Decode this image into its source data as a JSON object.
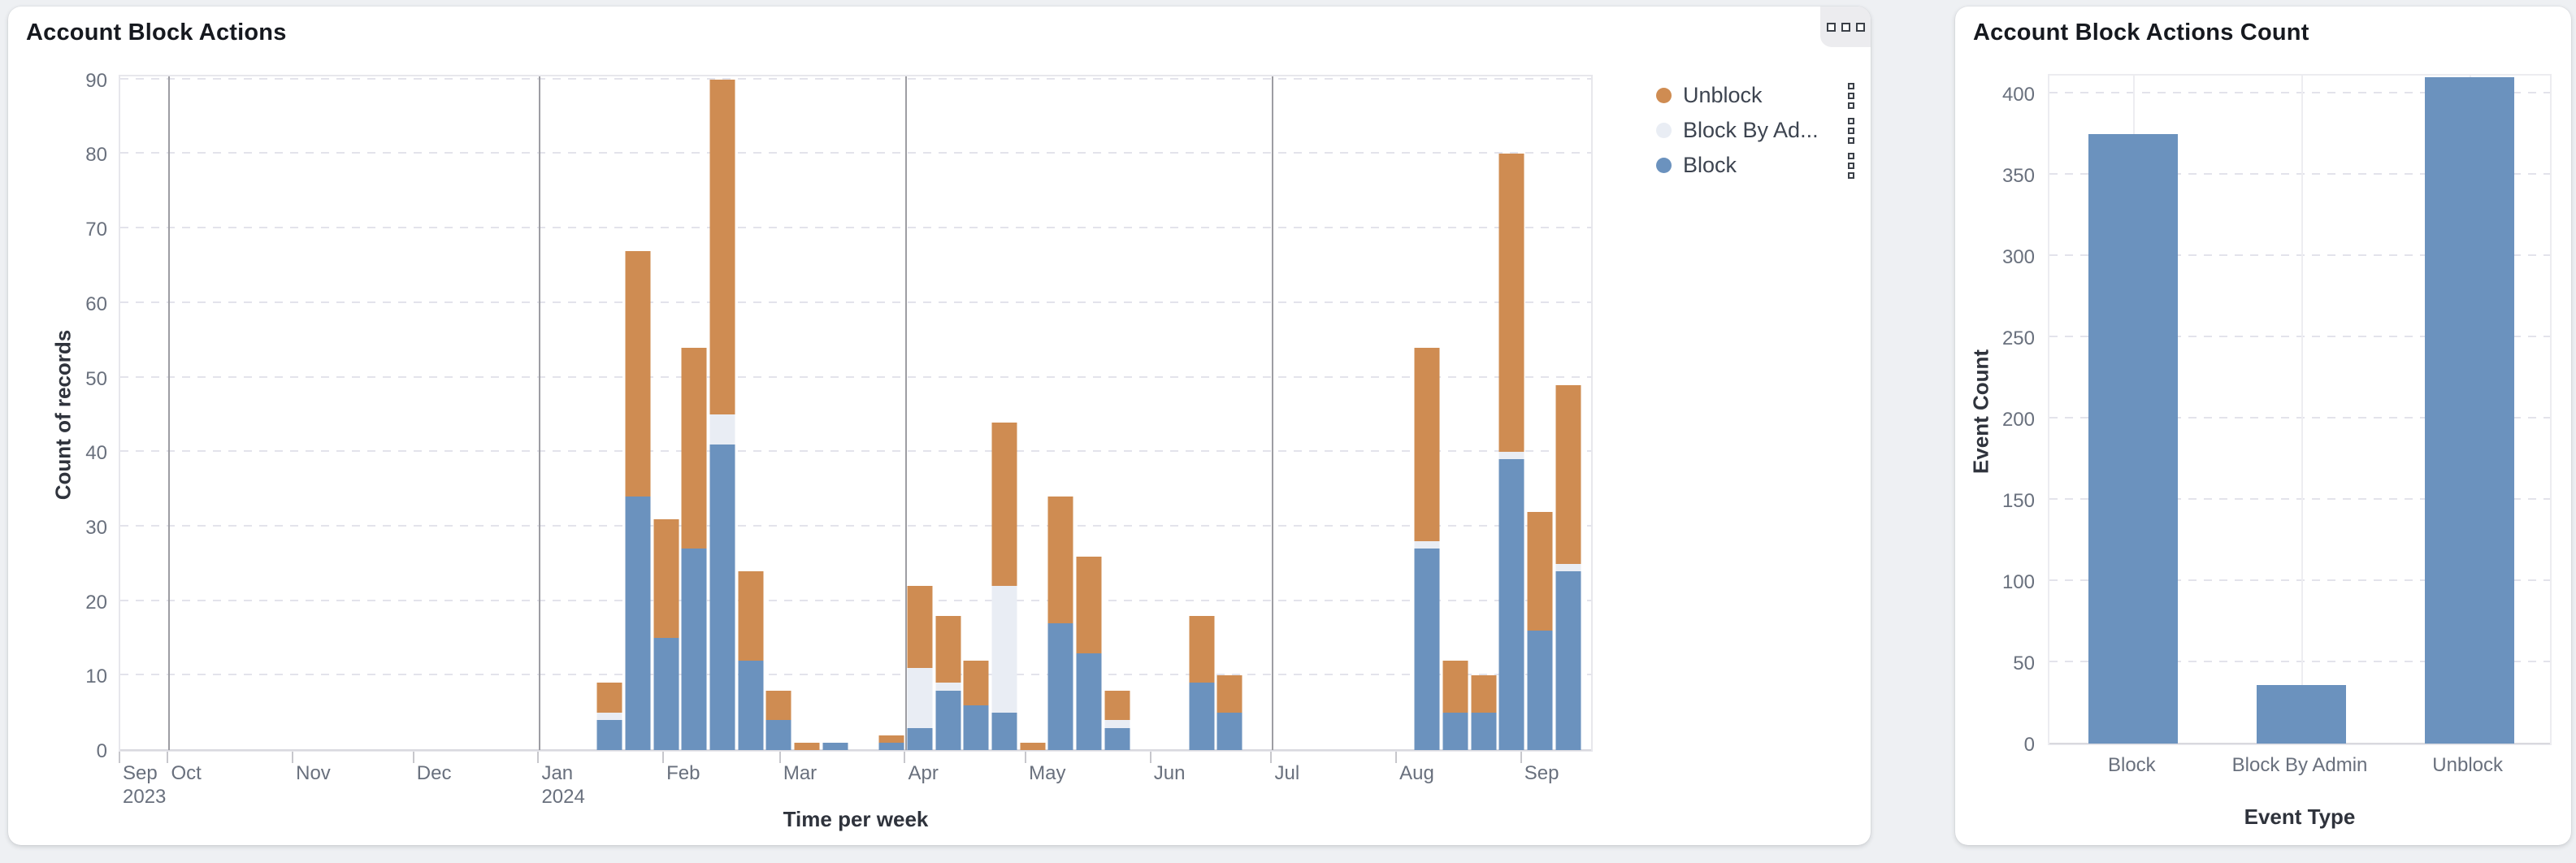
{
  "page": {
    "background": "#eef0f3"
  },
  "left_panel": {
    "title": "Account Block Actions",
    "options_button": {
      "icon": "three-squares-icon"
    },
    "legend": {
      "items": [
        {
          "label": "Unblock",
          "color": "#cf8c52"
        },
        {
          "label": "Block By Ad...",
          "color": "#e9edf4"
        },
        {
          "label": "Block",
          "color": "#6b92be"
        }
      ]
    }
  },
  "right_panel": {
    "title": "Account Block Actions Count"
  },
  "chart_data": [
    {
      "type": "bar",
      "stacked": true,
      "title": "Account Block Actions",
      "xlabel": "Time per week",
      "ylabel": "Count of records",
      "ylim": [
        0,
        90
      ],
      "ytick_step": 10,
      "grid": true,
      "legend_position": "top-right",
      "x_axis_days": 366,
      "x_axis_note": "one year window, weekly bars, Sep 2023 - Sep 2024",
      "month_ticks": [
        {
          "label": "Sep",
          "year": "2023",
          "day": 0
        },
        {
          "label": "Oct",
          "day": 12
        },
        {
          "label": "Nov",
          "day": 43
        },
        {
          "label": "Dec",
          "day": 73
        },
        {
          "label": "Jan",
          "year": "2024",
          "day": 104
        },
        {
          "label": "Feb",
          "day": 135
        },
        {
          "label": "Mar",
          "day": 164
        },
        {
          "label": "Apr",
          "day": 195
        },
        {
          "label": "May",
          "day": 225
        },
        {
          "label": "Jun",
          "day": 256
        },
        {
          "label": "Jul",
          "day": 286
        },
        {
          "label": "Aug",
          "day": 317
        },
        {
          "label": "Sep",
          "day": 348
        }
      ],
      "quarter_gridline_days": [
        12,
        104,
        195,
        286
      ],
      "series_order_bottom_to_top": [
        "Block",
        "Block By Admin",
        "Unblock"
      ],
      "series_colors": {
        "Block": "#6b92be",
        "Block By Admin": "#e9edf4",
        "Unblock": "#cf8c52"
      },
      "weeks": [
        {
          "week": "Jan 15",
          "day": 118,
          "block": 4,
          "block_by_admin": 1,
          "unblock": 4
        },
        {
          "week": "Jan 22",
          "day": 125,
          "block": 34,
          "block_by_admin": 0,
          "unblock": 33
        },
        {
          "week": "Jan 29",
          "day": 132,
          "block": 15,
          "block_by_admin": 0,
          "unblock": 16
        },
        {
          "week": "Feb 5",
          "day": 139,
          "block": 27,
          "block_by_admin": 0,
          "unblock": 27
        },
        {
          "week": "Feb 12",
          "day": 146,
          "block": 41,
          "block_by_admin": 4,
          "unblock": 45
        },
        {
          "week": "Feb 19",
          "day": 153,
          "block": 12,
          "block_by_admin": 0,
          "unblock": 12
        },
        {
          "week": "Feb 26",
          "day": 160,
          "block": 4,
          "block_by_admin": 0,
          "unblock": 4
        },
        {
          "week": "Mar 4",
          "day": 167,
          "block": 0,
          "block_by_admin": 0,
          "unblock": 1
        },
        {
          "week": "Mar 11",
          "day": 174,
          "block": 1,
          "block_by_admin": 0,
          "unblock": 0
        },
        {
          "week": "Mar 25",
          "day": 188,
          "block": 1,
          "block_by_admin": 0,
          "unblock": 1
        },
        {
          "week": "Apr 1",
          "day": 195,
          "block": 3,
          "block_by_admin": 8,
          "unblock": 11
        },
        {
          "week": "Apr 8",
          "day": 202,
          "block": 8,
          "block_by_admin": 1,
          "unblock": 9
        },
        {
          "week": "Apr 15",
          "day": 209,
          "block": 6,
          "block_by_admin": 0,
          "unblock": 6
        },
        {
          "week": "Apr 22",
          "day": 216,
          "block": 5,
          "block_by_admin": 17,
          "unblock": 22
        },
        {
          "week": "Apr 29",
          "day": 223,
          "block": 0,
          "block_by_admin": 0,
          "unblock": 1
        },
        {
          "week": "May 6",
          "day": 230,
          "block": 17,
          "block_by_admin": 0,
          "unblock": 17
        },
        {
          "week": "May 13",
          "day": 237,
          "block": 13,
          "block_by_admin": 0,
          "unblock": 13
        },
        {
          "week": "May 20",
          "day": 244,
          "block": 3,
          "block_by_admin": 1,
          "unblock": 4
        },
        {
          "week": "Jun 10",
          "day": 265,
          "block": 9,
          "block_by_admin": 0,
          "unblock": 9
        },
        {
          "week": "Jun 17",
          "day": 272,
          "block": 5,
          "block_by_admin": 0,
          "unblock": 5
        },
        {
          "week": "Aug 5",
          "day": 321,
          "block": 27,
          "block_by_admin": 1,
          "unblock": 26
        },
        {
          "week": "Aug 12",
          "day": 328,
          "block": 5,
          "block_by_admin": 0,
          "unblock": 7
        },
        {
          "week": "Aug 19",
          "day": 335,
          "block": 5,
          "block_by_admin": 0,
          "unblock": 5
        },
        {
          "week": "Aug 26",
          "day": 342,
          "block": 39,
          "block_by_admin": 1,
          "unblock": 40
        },
        {
          "week": "Sep 2",
          "day": 349,
          "block": 16,
          "block_by_admin": 0,
          "unblock": 16
        },
        {
          "week": "Sep 9",
          "day": 356,
          "block": 24,
          "block_by_admin": 1,
          "unblock": 24
        }
      ]
    },
    {
      "type": "bar",
      "title": "Account Block Actions Count",
      "categories": [
        "Block",
        "Block By Admin",
        "Unblock"
      ],
      "values": [
        375,
        36,
        410
      ],
      "xlabel": "Event Type",
      "ylabel": "Event Count",
      "ylim": [
        0,
        430
      ],
      "ytick_step": 50,
      "grid": true,
      "bar_color": "#6b92be"
    }
  ]
}
